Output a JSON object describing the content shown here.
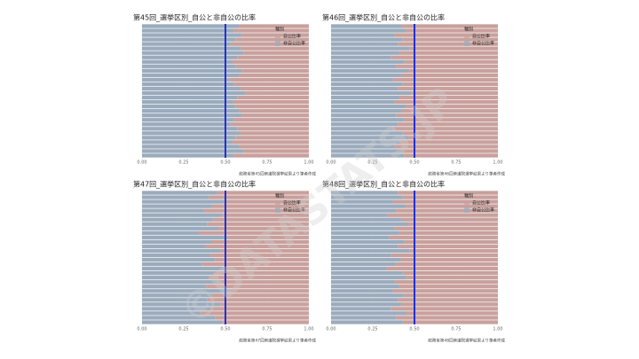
{
  "watermark": "©DATASTATS.JP",
  "chart_data": [
    {
      "type": "bar",
      "orientation": "horizontal",
      "stacked": true,
      "title": "第45回_選挙区別_自公と非自公の比率",
      "caption": "総務省第45回衆議院選挙結果より筆者作成",
      "legend_title": "種別",
      "legend_position": "top-right",
      "grid": true,
      "xlim": [
        0,
        1
      ],
      "xticks": [
        {
          "value": 0,
          "label": "0.00"
        },
        {
          "value": 0.25,
          "label": "0.25"
        },
        {
          "value": 0.5,
          "label": "0.50"
        },
        {
          "value": 0.75,
          "label": "0.75"
        },
        {
          "value": 1,
          "label": "1.00"
        }
      ],
      "reference_line": {
        "value": 0.5,
        "color": "#1f2fe0"
      },
      "series": [
        {
          "name": "自公比率",
          "color": "#c9a09c",
          "values": [
            0.42,
            0.45,
            0.4,
            0.44,
            0.47,
            0.41,
            0.39,
            0.43,
            0.46,
            0.44,
            0.4,
            0.42,
            0.48,
            0.45,
            0.41,
            0.38,
            0.43,
            0.46,
            0.44,
            0.42,
            0.4,
            0.45,
            0.47,
            0.43,
            0.41,
            0.44,
            0.46,
            0.42,
            0.39,
            0.45
          ]
        },
        {
          "name": "非自公比率",
          "color": "#9aabbd",
          "values": [
            0.58,
            0.55,
            0.6,
            0.56,
            0.53,
            0.59,
            0.61,
            0.57,
            0.54,
            0.56,
            0.6,
            0.58,
            0.52,
            0.55,
            0.59,
            0.62,
            0.57,
            0.54,
            0.56,
            0.58,
            0.6,
            0.55,
            0.53,
            0.57,
            0.59,
            0.56,
            0.54,
            0.58,
            0.61,
            0.55
          ]
        }
      ]
    },
    {
      "type": "bar",
      "orientation": "horizontal",
      "stacked": true,
      "title": "第46回_選挙区別_自公と非自公の比率",
      "caption": "総務省第46回衆議院選挙結果より筆者作成",
      "legend_title": "種別",
      "legend_position": "top-right",
      "grid": true,
      "xlim": [
        0,
        1
      ],
      "xticks": [
        {
          "value": 0,
          "label": "0.00"
        },
        {
          "value": 0.25,
          "label": "0.25"
        },
        {
          "value": 0.5,
          "label": "0.50"
        },
        {
          "value": 0.75,
          "label": "0.75"
        },
        {
          "value": 1,
          "label": "1.00"
        }
      ],
      "reference_line": {
        "value": 0.5,
        "color": "#1f2fe0"
      },
      "series": [
        {
          "name": "自公比率",
          "color": "#c9a09c",
          "values": [
            0.58,
            0.55,
            0.62,
            0.57,
            0.6,
            0.53,
            0.59,
            0.64,
            0.56,
            0.61,
            0.54,
            0.58,
            0.63,
            0.57,
            0.6,
            0.52,
            0.59,
            0.62,
            0.55,
            0.58,
            0.61,
            0.56,
            0.6,
            0.63,
            0.57,
            0.54,
            0.59,
            0.62,
            0.58,
            0.56
          ]
        },
        {
          "name": "非自公比率",
          "color": "#9aabbd",
          "values": [
            0.42,
            0.45,
            0.38,
            0.43,
            0.4,
            0.47,
            0.41,
            0.36,
            0.44,
            0.39,
            0.46,
            0.42,
            0.37,
            0.43,
            0.4,
            0.48,
            0.41,
            0.38,
            0.45,
            0.42,
            0.39,
            0.44,
            0.4,
            0.37,
            0.43,
            0.46,
            0.41,
            0.38,
            0.42,
            0.44
          ]
        }
      ]
    },
    {
      "type": "bar",
      "orientation": "horizontal",
      "stacked": true,
      "title": "第47回_選挙区別_自公と非自公の比率",
      "caption": "総務省第47回衆議院選挙結果より筆者作成",
      "legend_title": "種別",
      "legend_position": "top-right",
      "grid": true,
      "xlim": [
        0,
        1
      ],
      "xticks": [
        {
          "value": 0,
          "label": "0.00"
        },
        {
          "value": 0.25,
          "label": "0.25"
        },
        {
          "value": 0.5,
          "label": "0.50"
        },
        {
          "value": 0.75,
          "label": "0.75"
        },
        {
          "value": 1,
          "label": "1.00"
        }
      ],
      "reference_line": {
        "value": 0.5,
        "color": "#1f2fe0"
      },
      "series": [
        {
          "name": "自公比率",
          "color": "#c9a09c",
          "values": [
            0.55,
            0.6,
            0.5,
            0.58,
            0.63,
            0.52,
            0.57,
            0.61,
            0.54,
            0.66,
            0.49,
            0.58,
            0.62,
            0.53,
            0.59,
            0.56,
            0.64,
            0.51,
            0.57,
            0.6,
            0.55,
            0.62,
            0.48,
            0.58,
            0.61,
            0.53,
            0.59,
            0.65,
            0.56,
            0.52
          ]
        },
        {
          "name": "非自公比率",
          "color": "#9aabbd",
          "values": [
            0.45,
            0.4,
            0.5,
            0.42,
            0.37,
            0.48,
            0.43,
            0.39,
            0.46,
            0.34,
            0.51,
            0.42,
            0.38,
            0.47,
            0.41,
            0.44,
            0.36,
            0.49,
            0.43,
            0.4,
            0.45,
            0.38,
            0.52,
            0.42,
            0.39,
            0.47,
            0.41,
            0.35,
            0.44,
            0.48
          ]
        }
      ]
    },
    {
      "type": "bar",
      "orientation": "horizontal",
      "stacked": true,
      "title": "第48回_選挙区別_自公と非自公の比率",
      "caption": "総務省第48回衆議院選挙結果より筆者作成",
      "legend_title": "種別",
      "legend_position": "top-right",
      "grid": true,
      "xlim": [
        0,
        1
      ],
      "xticks": [
        {
          "value": 0,
          "label": "0.00"
        },
        {
          "value": 0.25,
          "label": "0.25"
        },
        {
          "value": 0.5,
          "label": "0.50"
        },
        {
          "value": 0.75,
          "label": "0.75"
        },
        {
          "value": 1,
          "label": "1.00"
        }
      ],
      "reference_line": {
        "value": 0.5,
        "color": "#1f2fe0"
      },
      "series": [
        {
          "name": "自公比率",
          "color": "#c9a09c",
          "values": [
            0.6,
            0.57,
            0.63,
            0.55,
            0.61,
            0.66,
            0.58,
            0.54,
            0.62,
            0.59,
            0.65,
            0.56,
            0.6,
            0.53,
            0.64,
            0.58,
            0.61,
            0.67,
            0.57,
            0.55,
            0.62,
            0.59,
            0.63,
            0.56,
            0.6,
            0.58,
            0.64,
            0.55,
            0.61,
            0.57
          ]
        },
        {
          "name": "非自公比率",
          "color": "#9aabbd",
          "values": [
            0.4,
            0.43,
            0.37,
            0.45,
            0.39,
            0.34,
            0.42,
            0.46,
            0.38,
            0.41,
            0.35,
            0.44,
            0.4,
            0.47,
            0.36,
            0.42,
            0.39,
            0.33,
            0.43,
            0.45,
            0.38,
            0.41,
            0.37,
            0.44,
            0.4,
            0.42,
            0.36,
            0.45,
            0.39,
            0.43
          ]
        }
      ]
    }
  ]
}
